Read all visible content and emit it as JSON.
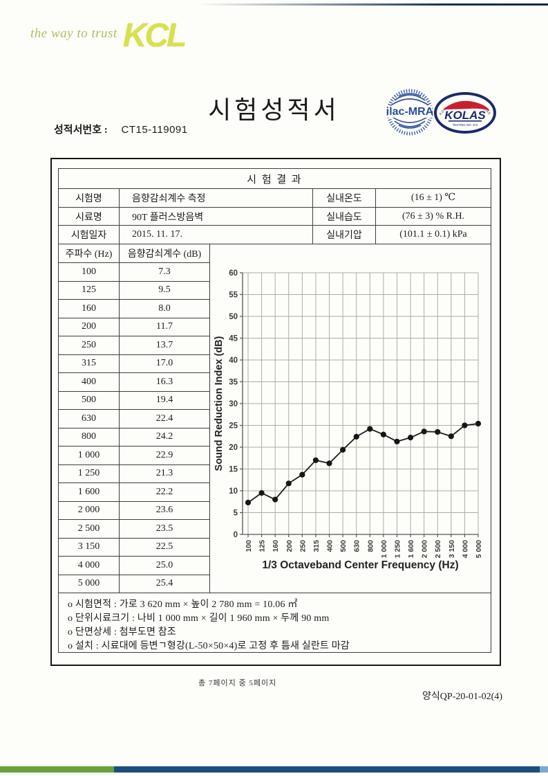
{
  "header": {
    "tagline": "the way to trust",
    "logo_text": "KCL",
    "doc_title": "시험성적서",
    "report_no_label": "성적서번호 :",
    "report_no": "CT15-119091"
  },
  "logos": {
    "ilac_text": "ilac-MRA",
    "kolas_text": "KOLAS",
    "kolas_ring_text": "KOREA LABORATORY ACCREDITATION SCHEME",
    "kolas_sub_text": "TESTING NO. 372"
  },
  "table": {
    "title": "시 험 결 과",
    "info_rows": [
      {
        "label": "시험명",
        "value": "음향감쇠계수 측정",
        "label2": "실내온도",
        "value2": "(16 ± 1) ℃"
      },
      {
        "label": "시료명",
        "value": "90T 플러스방음벽",
        "label2": "실내습도",
        "value2": "(76 ± 3) % R.H."
      },
      {
        "label": "시험일자",
        "value": "2015. 11. 17.",
        "label2": "실내기압",
        "value2": "(101.1 ± 0.1) kPa"
      }
    ],
    "freq_table": {
      "col1_header": "주파수 (Hz)",
      "col2_header": "음향감쇠계수 (dB)",
      "rows": [
        [
          "100",
          "7.3"
        ],
        [
          "125",
          "9.5"
        ],
        [
          "160",
          "8.0"
        ],
        [
          "200",
          "11.7"
        ],
        [
          "250",
          "13.7"
        ],
        [
          "315",
          "17.0"
        ],
        [
          "400",
          "16.3"
        ],
        [
          "500",
          "19.4"
        ],
        [
          "630",
          "22.4"
        ],
        [
          "800",
          "24.2"
        ],
        [
          "1 000",
          "22.9"
        ],
        [
          "1 250",
          "21.3"
        ],
        [
          "1 600",
          "22.2"
        ],
        [
          "2 000",
          "23.6"
        ],
        [
          "2 500",
          "23.5"
        ],
        [
          "3 150",
          "22.5"
        ],
        [
          "4 000",
          "25.0"
        ],
        [
          "5 000",
          "25.4"
        ]
      ]
    },
    "notes": [
      "o 시험면적 : 가로 3 620 mm × 높이 2 780 mm = 10.06 ㎡",
      "o 단위시료크기 : 나비 1 000 mm × 길이 1 960 mm × 두께 90 mm",
      "o 단면상세 : 첨부도면 참조",
      "o 설치 : 시료대에 등변ㄱ형강(L-50×50×4)로 고정 후 틈새 실란트 마감"
    ]
  },
  "chart_data": {
    "type": "line",
    "categories": [
      "100",
      "125",
      "160",
      "200",
      "250",
      "315",
      "400",
      "500",
      "630",
      "800",
      "1 000",
      "1 250",
      "1 600",
      "2 000",
      "2 500",
      "3 150",
      "4 000",
      "5 000"
    ],
    "values": [
      7.3,
      9.5,
      8.0,
      11.7,
      13.7,
      17.0,
      16.3,
      19.4,
      22.4,
      24.2,
      22.9,
      21.3,
      22.2,
      23.6,
      23.5,
      22.5,
      25.0,
      25.4
    ],
    "title": "",
    "xlabel": "1/3 Octaveband Center Frequency (Hz)",
    "ylabel": "Sound Reduction Index (dB)",
    "ylim": [
      0,
      60
    ],
    "ytick_step": 5,
    "grid": true,
    "legend": "none",
    "line_color": "#1c1c1c",
    "marker": "circle",
    "gridline_color": "#adada4"
  },
  "footer": {
    "page_info": "총 7페이지 중 5페이지",
    "form_no": "양식QP-20-01-02(4)"
  },
  "colors": {
    "brand_yellow_green": "#d9e04e",
    "tagline_olive": "#b4bc60",
    "bar_green": "#69a23c",
    "bar_navy": "#1d4d7d",
    "ilac_blue": "#2b4f9e",
    "kolas_navy": "#1b2a6b",
    "kolas_red": "#c8202f"
  }
}
